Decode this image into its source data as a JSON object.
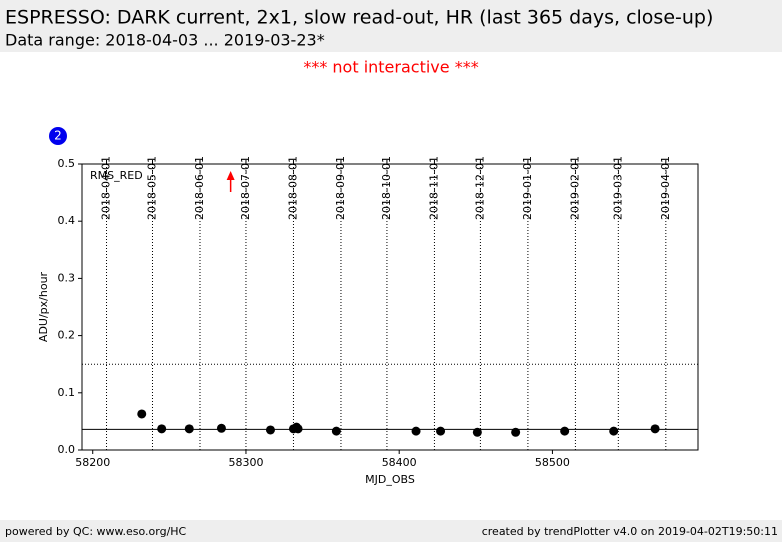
{
  "header": {
    "title": "ESPRESSO: DARK current, 2x1, slow read-out, HR (last 365 days, close-up)",
    "subtitle": "Data range: 2018-04-03 ... 2019-03-23*",
    "notice": "*** not interactive ***",
    "badge": "2"
  },
  "footer": {
    "left": "powered by QC: www.eso.org/HC",
    "right": "created by trendPlotter v4.0 on 2019-04-02T19:50:11"
  },
  "chart_data": {
    "type": "scatter",
    "series_label": "RMS_RED",
    "x_label": "MJD_OBS",
    "y_label": "ADU/px/hour",
    "x": [
      58232,
      58245,
      58263,
      58284,
      58316,
      58331,
      58333,
      58334,
      58359,
      58411,
      58427,
      58451,
      58476,
      58508,
      58540,
      58567
    ],
    "values": [
      0.063,
      0.037,
      0.037,
      0.038,
      0.035,
      0.037,
      0.04,
      0.037,
      0.033,
      0.033,
      0.033,
      0.031,
      0.031,
      0.033,
      0.033,
      0.037
    ],
    "color": "#000000",
    "xlim": [
      58193,
      58595
    ],
    "ylim": [
      0,
      0.5
    ],
    "xticks": [
      58200,
      58300,
      58400,
      58500
    ],
    "yticks": [
      {
        "value": 0,
        "label": "0.0"
      },
      0.1,
      0.2,
      0.3,
      0.4,
      0.5
    ],
    "date_ticks": [
      {
        "value": 58209,
        "label": "2018-04-01"
      },
      {
        "value": 58239,
        "label": "2018-05-01"
      },
      {
        "value": 58270,
        "label": "2018-06-01"
      },
      {
        "value": 58300,
        "label": "2018-07-01"
      },
      {
        "value": 58331,
        "label": "2018-08-01"
      },
      {
        "value": 58362,
        "label": "2018-09-01"
      },
      {
        "value": 58392,
        "label": "2018-10-01"
      },
      {
        "value": 58423,
        "label": "2018-11-01"
      },
      {
        "value": 58453,
        "label": "2018-12-01"
      },
      {
        "value": 58484,
        "label": "2019-01-01"
      },
      {
        "value": 58515,
        "label": "2019-02-01"
      },
      {
        "value": 58543,
        "label": "2019-03-01"
      },
      {
        "value": 58574,
        "label": "2019-04-01"
      }
    ],
    "reference_line": 0.036,
    "threshold_line": 0.15,
    "out_of_range_x": 58290,
    "out_of_range_color": "#ff0000"
  }
}
